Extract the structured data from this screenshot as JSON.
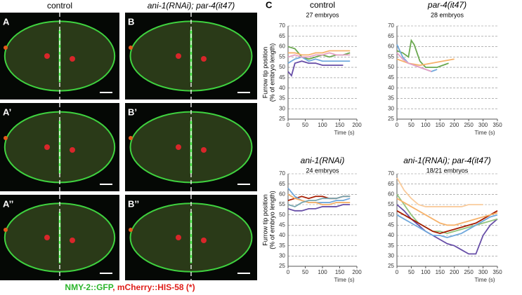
{
  "figure": {
    "columns": [
      "control",
      "ani-1(RNAi); par-4(it47)"
    ],
    "images": [
      {
        "label": "A"
      },
      {
        "label": "B"
      },
      {
        "label": "A’"
      },
      {
        "label": "B’"
      },
      {
        "label": "A’’"
      },
      {
        "label": "B’’"
      }
    ],
    "caption": [
      "NMY-2::GFP",
      ", mCherry::HIS-58 (*)"
    ],
    "panel_label": "C"
  },
  "chart_data": [
    {
      "type": "line",
      "title": "control",
      "italic": false,
      "subtitle": "27 embryos",
      "y_label": [
        "Furrow tip  position",
        "(% of embryo length)"
      ],
      "x_label": "Time (s)",
      "xlim": [
        0,
        200
      ],
      "xticks": [
        0,
        50,
        100,
        150,
        200
      ],
      "ylim": [
        25,
        70
      ],
      "yticks": [
        25,
        30,
        35,
        40,
        45,
        50,
        55,
        60,
        65,
        70
      ],
      "grid": true,
      "series": [
        {
          "color": "#6aa84f",
          "x": [
            0,
            20,
            40,
            60,
            80,
            100,
            120,
            140,
            160,
            180
          ],
          "values": [
            60,
            59,
            55,
            54,
            55,
            56,
            55,
            56,
            56,
            57
          ]
        },
        {
          "color": "#674ea7",
          "x": [
            0,
            10,
            20,
            40,
            60,
            80,
            100,
            120,
            140,
            160
          ],
          "values": [
            48,
            46,
            52,
            53,
            52,
            52,
            51,
            51,
            51,
            51
          ]
        },
        {
          "color": "#6fa8dc",
          "x": [
            0,
            20,
            40,
            60,
            80,
            100,
            120,
            140,
            160,
            180
          ],
          "values": [
            52,
            54,
            55,
            53,
            54,
            53,
            53,
            53,
            53,
            53
          ]
        },
        {
          "color": "#f6b26b",
          "x": [
            0,
            20,
            40,
            60,
            80,
            100,
            120,
            140,
            160,
            180
          ],
          "values": [
            57,
            57,
            56,
            56,
            57,
            57,
            58,
            58,
            58,
            58
          ]
        },
        {
          "color": "#e6a0c4",
          "x": [
            0,
            20,
            40,
            60,
            80,
            100,
            120,
            140,
            160,
            180
          ],
          "values": [
            55,
            56,
            55,
            55,
            56,
            56,
            57,
            56,
            56,
            56
          ]
        }
      ]
    },
    {
      "type": "line",
      "title": "par-4(it47)",
      "italic": true,
      "subtitle": "28 embryos",
      "x_label": "Time (s)",
      "xlim": [
        0,
        350
      ],
      "xticks": [
        0,
        50,
        100,
        150,
        200,
        250,
        300,
        350
      ],
      "ylim": [
        25,
        70
      ],
      "yticks": [
        25,
        30,
        35,
        40,
        45,
        50,
        55,
        60,
        65,
        70
      ],
      "grid": true,
      "series": [
        {
          "color": "#6aa84f",
          "x": [
            0,
            20,
            40,
            50,
            60,
            80,
            100,
            120,
            140,
            160,
            180
          ],
          "values": [
            58,
            57,
            55,
            63,
            61,
            53,
            50,
            50,
            50,
            51,
            52
          ]
        },
        {
          "color": "#6fa8dc",
          "x": [
            0,
            20,
            40,
            60,
            80,
            100,
            120,
            140
          ],
          "values": [
            61,
            55,
            52,
            51,
            50,
            49,
            48,
            49
          ]
        },
        {
          "color": "#f6b26b",
          "x": [
            0,
            40,
            80,
            120,
            160,
            200
          ],
          "values": [
            54,
            52,
            51,
            52,
            53,
            54
          ]
        },
        {
          "color": "#e6a0c4",
          "x": [
            0,
            20,
            40,
            60,
            80,
            100,
            120
          ],
          "values": [
            57,
            54,
            52,
            51,
            50,
            49,
            48
          ]
        }
      ]
    },
    {
      "type": "line",
      "title": "ani-1(RNAi)",
      "italic": true,
      "subtitle": "24 embryos",
      "y_label": [
        "Furrow tip  position",
        "(% of embryo length)"
      ],
      "x_label": "Time (s)",
      "xlim": [
        0,
        200
      ],
      "xticks": [
        0,
        50,
        100,
        150,
        200
      ],
      "ylim": [
        25,
        70
      ],
      "yticks": [
        25,
        30,
        35,
        40,
        45,
        50,
        55,
        60,
        65,
        70
      ],
      "grid": true,
      "series": [
        {
          "color": "#a61c00",
          "x": [
            0,
            20,
            40,
            60,
            80,
            100,
            120,
            140,
            160,
            180
          ],
          "values": [
            57,
            58,
            59,
            58,
            59,
            59,
            58,
            58,
            59,
            59
          ]
        },
        {
          "color": "#6fa8dc",
          "x": [
            0,
            20,
            40,
            60,
            80,
            100,
            120,
            140,
            160,
            180
          ],
          "values": [
            63,
            59,
            57,
            56,
            56,
            56,
            56,
            57,
            57,
            58
          ]
        },
        {
          "color": "#674ea7",
          "x": [
            0,
            20,
            40,
            60,
            80,
            100,
            120,
            140,
            160,
            180
          ],
          "values": [
            53,
            52,
            52,
            53,
            53,
            54,
            54,
            54,
            55,
            55
          ]
        },
        {
          "color": "#f6b26b",
          "x": [
            0,
            20,
            40,
            60,
            80,
            100,
            120,
            140,
            160,
            180
          ],
          "values": [
            60,
            58,
            57,
            56,
            56,
            55,
            55,
            56,
            56,
            56
          ]
        },
        {
          "color": "#76a5af",
          "x": [
            0,
            20,
            40,
            60,
            80,
            100,
            120,
            140,
            160,
            180
          ],
          "values": [
            55,
            54,
            56,
            57,
            57,
            58,
            58,
            58,
            59,
            59
          ]
        }
      ]
    },
    {
      "type": "line",
      "title": "ani-1(RNAi); par-4(it47)",
      "italic": true,
      "subtitle": "18/21 embryos",
      "x_label": "Time (s)",
      "xlim": [
        0,
        350
      ],
      "xticks": [
        0,
        50,
        100,
        150,
        200,
        250,
        300,
        350
      ],
      "ylim": [
        25,
        70
      ],
      "yticks": [
        25,
        30,
        35,
        40,
        45,
        50,
        55,
        60,
        65,
        70
      ],
      "grid": true,
      "series": [
        {
          "color": "#f9cb9c",
          "x": [
            0,
            25,
            50,
            75,
            100,
            125,
            150,
            175,
            200,
            225,
            250,
            275,
            300
          ],
          "values": [
            68,
            62,
            58,
            55,
            54,
            54,
            54,
            54,
            54,
            54,
            55,
            55,
            55
          ]
        },
        {
          "color": "#674ea7",
          "x": [
            0,
            25,
            50,
            75,
            100,
            125,
            150,
            175,
            200,
            225,
            250,
            275,
            300,
            325,
            350
          ],
          "values": [
            55,
            52,
            48,
            45,
            42,
            40,
            38,
            36,
            35,
            33,
            31,
            31,
            40,
            45,
            48
          ]
        },
        {
          "color": "#93c47d",
          "x": [
            0,
            25,
            50,
            75,
            100,
            125,
            150,
            175,
            200,
            225,
            250,
            275,
            300,
            325,
            350
          ],
          "values": [
            60,
            55,
            50,
            46,
            44,
            42,
            42,
            41,
            42,
            43,
            44,
            45,
            46,
            47,
            48
          ]
        },
        {
          "color": "#6fa8dc",
          "x": [
            0,
            25,
            50,
            75,
            100,
            125,
            150,
            175,
            200,
            225,
            250,
            275,
            300,
            325,
            350
          ],
          "values": [
            50,
            48,
            46,
            44,
            42,
            40,
            40,
            39,
            40,
            41,
            43,
            45,
            47,
            49,
            50
          ]
        },
        {
          "color": "#a61c00",
          "x": [
            0,
            25,
            50,
            75,
            100,
            125,
            150,
            175,
            200,
            225,
            250,
            275,
            300,
            325,
            350
          ],
          "values": [
            52,
            50,
            48,
            46,
            44,
            42,
            41,
            42,
            43,
            44,
            45,
            46,
            48,
            50,
            52
          ]
        },
        {
          "color": "#f6b26b",
          "x": [
            0,
            25,
            50,
            75,
            100,
            125,
            150,
            175,
            200,
            225,
            250,
            275,
            300,
            325,
            350
          ],
          "values": [
            58,
            56,
            54,
            52,
            50,
            48,
            46,
            45,
            45,
            46,
            47,
            48,
            49,
            50,
            51
          ]
        }
      ]
    }
  ]
}
